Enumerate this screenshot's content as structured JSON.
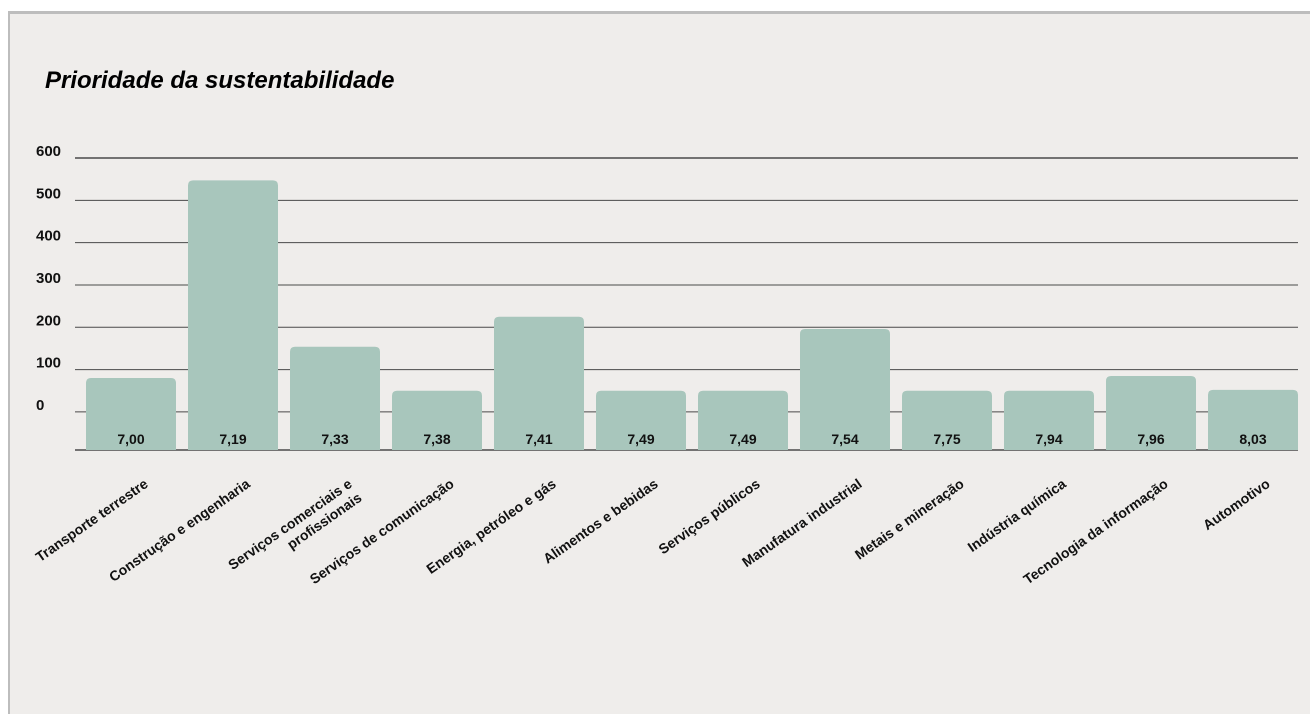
{
  "chart_data": {
    "type": "bar",
    "title": "Prioridade da sustentabilidade",
    "categories": [
      "Transporte terrestre",
      "Construção e engenharia",
      "Serviços comerciais e profissionais",
      "Serviços de comunicação",
      "Energia, petróleo e gás",
      "Alimentos e bebidas",
      "Serviços públicos",
      "Manufatura industrial",
      "Metais e mineração",
      "Indústria química",
      "Tecnologia da informação",
      "Automotivo"
    ],
    "values": [
      80,
      547,
      154,
      50,
      225,
      50,
      50,
      196,
      50,
      50,
      85,
      52
    ],
    "data_labels": [
      "7,00",
      "7,19",
      "7,33",
      "7,38",
      "7,41",
      "7,49",
      "7,49",
      "7,54",
      "7,75",
      "7,94",
      "7,96",
      "8,03"
    ],
    "ylim": [
      -90,
      600
    ],
    "yticks": [
      0,
      100,
      200,
      300,
      400,
      500,
      600
    ],
    "ytick_labels": [
      "0",
      "100",
      "200",
      "300",
      "400",
      "500",
      "600"
    ],
    "xlabel": "",
    "ylabel": "",
    "grid": true,
    "colors": {
      "bar": "#a8c6bc",
      "grid": "#4a4a4a",
      "background": "#efedeb",
      "frame_border": "#bdbdbd"
    }
  }
}
